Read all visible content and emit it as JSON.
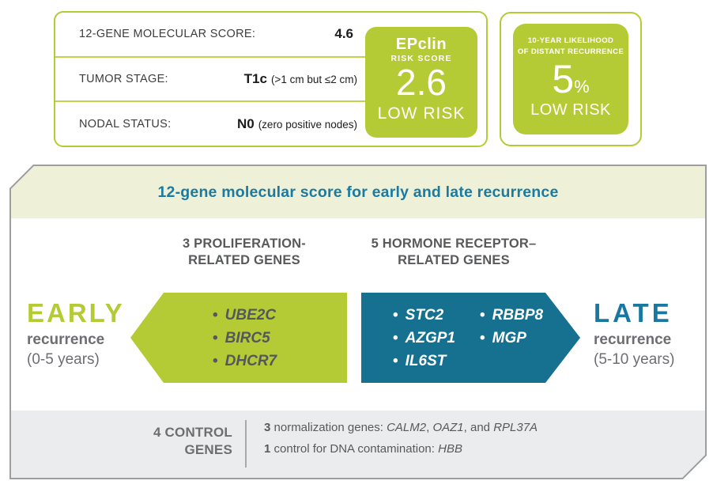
{
  "colors": {
    "green": "#b5cb35",
    "teal_fill": "#15718f",
    "teal_text": "#1a7aa2",
    "gray_text": "#6d6e71",
    "band_bg": "#eef0d7",
    "footer_bg": "#ebeced",
    "panel_border": "#9c9ea0"
  },
  "score_panel": {
    "rows": [
      {
        "label": "12-GENE MOLECULAR SCORE:",
        "value": "4.6",
        "note": ""
      },
      {
        "label": "TUMOR STAGE:",
        "value": "T1c",
        "note": "(>1 cm but ≤2 cm)"
      },
      {
        "label": "NODAL STATUS:",
        "value": "N0",
        "note": "(zero positive nodes)"
      }
    ],
    "epclin": {
      "title": "EPclin",
      "subtitle": "RISK SCORE",
      "score": "2.6",
      "risk": "LOW RISK"
    }
  },
  "likelihood_panel": {
    "heading_line1": "10-YEAR LIKELIHOOD",
    "heading_line2": "OF DISTANT RECURRENCE",
    "value": "5",
    "unit": "%",
    "risk": "LOW RISK"
  },
  "diagram": {
    "title": "12-gene molecular score for early and late recurrence",
    "proliferation": {
      "heading_line1": "3 PROLIFERATION-",
      "heading_line2": "RELATED GENES",
      "genes": [
        "UBE2C",
        "BIRC5",
        "DHCR7"
      ]
    },
    "hormone": {
      "heading_line1": "5 HORMONE RECEPTOR–",
      "heading_line2": "RELATED GENES",
      "genes_col1": [
        "STC2",
        "AZGP1",
        "IL6ST"
      ],
      "genes_col2": [
        "RBBP8",
        "MGP"
      ]
    },
    "early": {
      "title": "EARLY",
      "sub": "recurrence",
      "range": "(0-5 years)"
    },
    "late": {
      "title": "LATE",
      "sub": "recurrence",
      "range": "(5-10 years)"
    },
    "controls": {
      "label_line1": "4 CONTROL",
      "label_line2": "GENES",
      "line1": [
        {
          "t": "3",
          "style": "b"
        },
        {
          "t": " normalization genes: ",
          "style": ""
        },
        {
          "t": "CALM2",
          "style": "i"
        },
        {
          "t": ", ",
          "style": ""
        },
        {
          "t": "OAZ1",
          "style": "i"
        },
        {
          "t": ", and ",
          "style": ""
        },
        {
          "t": "RPL37A",
          "style": "i"
        }
      ],
      "line2": [
        {
          "t": "1",
          "style": "b"
        },
        {
          "t": " control for DNA contamination: ",
          "style": ""
        },
        {
          "t": "HBB",
          "style": "i"
        }
      ]
    }
  }
}
